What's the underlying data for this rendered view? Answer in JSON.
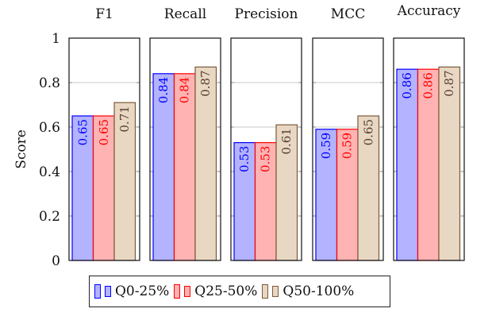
{
  "chart_data": {
    "type": "bar",
    "ylabel": "Score",
    "ylim": [
      0,
      1
    ],
    "yticks": [
      0,
      0.2,
      0.4,
      0.6,
      0.8,
      1
    ],
    "ytick_labels": [
      "0",
      "0.2",
      "0.4",
      "0.6",
      "0.8",
      "1"
    ],
    "grid": true,
    "legend_position": "bottom",
    "panels": [
      "F1",
      "Recall",
      "Precision",
      "MCC",
      "Accuracy"
    ],
    "series": [
      {
        "name": "Q0-25%",
        "fill": "#b3b3ff",
        "stroke": "#0000ff",
        "label_color": "#0000ff",
        "values": [
          0.65,
          0.84,
          0.53,
          0.59,
          0.86
        ]
      },
      {
        "name": "Q25-50%",
        "fill": "#ffb3b3",
        "stroke": "#ff0000",
        "label_color": "#ff0000",
        "values": [
          0.65,
          0.84,
          0.53,
          0.59,
          0.86
        ]
      },
      {
        "name": "Q50-100%",
        "fill": "#e8d7c3",
        "stroke": "#7a5a3a",
        "label_color": "#5a4030",
        "values": [
          0.71,
          0.87,
          0.61,
          0.65,
          0.87
        ]
      }
    ],
    "data_labels": [
      [
        "0.65",
        "0.84",
        "0.53",
        "0.59",
        "0.86"
      ],
      [
        "0.65",
        "0.84",
        "0.53",
        "0.59",
        "0.86"
      ],
      [
        "0.71",
        "0.87",
        "0.61",
        "0.65",
        "0.87"
      ]
    ]
  }
}
